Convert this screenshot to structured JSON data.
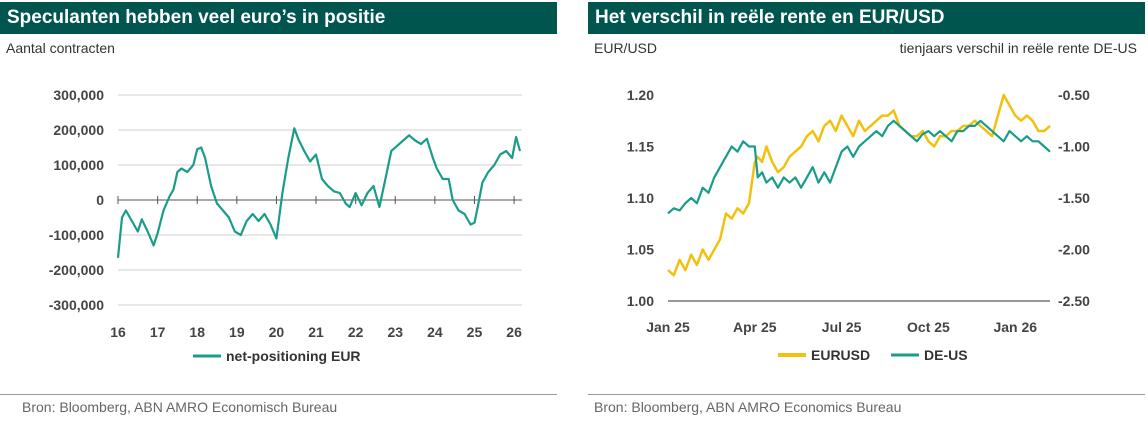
{
  "colors": {
    "header_bg": "#00554f",
    "teal": "#1a9c8a",
    "yellow": "#f2c10f",
    "grid": "#cfcfcf",
    "axis": "#777777"
  },
  "left": {
    "title": "Speculanten hebben veel euro’s in positie",
    "subtitle": "Aantal contracten",
    "source": "Bron: Bloomberg, ABN AMRO Economisch Bureau"
  },
  "right": {
    "title": "Het verschil in reële rente en EUR/USD",
    "subtitle_left": "EUR/USD",
    "subtitle_right": "tienjaars verschil in reële rente DE-US",
    "source": "Bron: Bloomberg, ABN AMRO Economics Bureau"
  },
  "chart_data": [
    {
      "type": "line",
      "title": "Speculanten hebben veel euro’s in positie",
      "ylabel": "Aantal contracten",
      "ylim": [
        -300000,
        300000
      ],
      "yticks": [
        300000,
        200000,
        100000,
        0,
        -100000,
        -200000,
        -300000
      ],
      "ytick_labels": [
        "300,000",
        "200,000",
        "100,000",
        "0",
        "-100,000",
        "-200,000",
        "-300,000"
      ],
      "xlim": [
        16,
        26.2
      ],
      "xticks": [
        16,
        17,
        18,
        19,
        20,
        21,
        22,
        23,
        24,
        25,
        26
      ],
      "xtick_labels": [
        "16",
        "17",
        "18",
        "19",
        "20",
        "21",
        "22",
        "23",
        "24",
        "25",
        "26"
      ],
      "grid": true,
      "legend": "bottom",
      "series": [
        {
          "name": "net-positioning EUR",
          "x": [
            16.0,
            16.1,
            16.2,
            16.35,
            16.5,
            16.6,
            16.75,
            16.9,
            17.0,
            17.15,
            17.3,
            17.4,
            17.5,
            17.6,
            17.75,
            17.9,
            18.0,
            18.1,
            18.2,
            18.35,
            18.5,
            18.65,
            18.8,
            18.95,
            19.1,
            19.25,
            19.4,
            19.55,
            19.7,
            19.85,
            20.0,
            20.15,
            20.3,
            20.45,
            20.55,
            20.7,
            20.85,
            21.0,
            21.15,
            21.3,
            21.45,
            21.6,
            21.75,
            21.85,
            22.0,
            22.15,
            22.3,
            22.45,
            22.6,
            22.75,
            22.9,
            23.05,
            23.2,
            23.35,
            23.5,
            23.65,
            23.8,
            23.95,
            24.05,
            24.2,
            24.35,
            24.45,
            24.6,
            24.75,
            24.9,
            25.0,
            25.1,
            25.2,
            25.35,
            25.5,
            25.65,
            25.8,
            25.95,
            26.05,
            26.15
          ],
          "values": [
            -165000,
            -50000,
            -30000,
            -60000,
            -90000,
            -55000,
            -90000,
            -130000,
            -95000,
            -30000,
            10000,
            30000,
            80000,
            90000,
            80000,
            100000,
            145000,
            150000,
            120000,
            40000,
            -10000,
            -30000,
            -50000,
            -90000,
            -100000,
            -60000,
            -40000,
            -60000,
            -40000,
            -70000,
            -110000,
            20000,
            120000,
            205000,
            175000,
            140000,
            110000,
            130000,
            60000,
            40000,
            25000,
            20000,
            -10000,
            -20000,
            20000,
            -15000,
            20000,
            40000,
            -20000,
            60000,
            140000,
            155000,
            170000,
            185000,
            170000,
            160000,
            175000,
            120000,
            90000,
            60000,
            60000,
            0,
            -30000,
            -40000,
            -70000,
            -65000,
            -10000,
            50000,
            80000,
            100000,
            130000,
            140000,
            120000,
            180000,
            140000
          ]
        }
      ]
    },
    {
      "type": "line",
      "title": "Het verschil in reële rente en EUR/USD",
      "ylabel": "EUR/USD",
      "y2label": "tienjaars verschil in reële rente DE-US",
      "ylim": [
        1.0,
        1.2
      ],
      "yticks": [
        1.2,
        1.15,
        1.1,
        1.05,
        1.0
      ],
      "ytick_labels": [
        "1.20",
        "1.15",
        "1.10",
        "1.05",
        "1.00"
      ],
      "y2lim": [
        -2.5,
        -0.5
      ],
      "y2ticks": [
        -0.5,
        -1.0,
        -1.5,
        -2.0,
        -2.5
      ],
      "y2tick_labels": [
        "-0.50",
        "-1.00",
        "-1.50",
        "-2.00",
        "-2.50"
      ],
      "xlim": [
        0,
        13.2
      ],
      "xticks": [
        0,
        3,
        6,
        9,
        12
      ],
      "xtick_labels": [
        "Jan 25",
        "Apr 25",
        "Jul 25",
        "Oct 25",
        "Jan 26"
      ],
      "grid": false,
      "legend": "bottom",
      "series": [
        {
          "name": "EURUSD",
          "axis": "left",
          "x": [
            0.0,
            0.2,
            0.4,
            0.6,
            0.8,
            1.0,
            1.2,
            1.4,
            1.6,
            1.8,
            2.0,
            2.2,
            2.4,
            2.6,
            2.8,
            3.0,
            3.1,
            3.25,
            3.4,
            3.6,
            3.8,
            4.0,
            4.2,
            4.4,
            4.6,
            4.8,
            5.0,
            5.2,
            5.4,
            5.6,
            5.8,
            6.0,
            6.2,
            6.4,
            6.6,
            6.8,
            7.0,
            7.2,
            7.4,
            7.6,
            7.8,
            8.0,
            8.2,
            8.4,
            8.6,
            8.8,
            9.0,
            9.2,
            9.4,
            9.6,
            9.8,
            10.0,
            10.2,
            10.4,
            10.6,
            10.8,
            11.0,
            11.2,
            11.4,
            11.6,
            11.8,
            12.0,
            12.2,
            12.4,
            12.6,
            12.8,
            13.0,
            13.2
          ],
          "values": [
            1.03,
            1.025,
            1.04,
            1.03,
            1.045,
            1.035,
            1.05,
            1.04,
            1.05,
            1.06,
            1.085,
            1.08,
            1.09,
            1.085,
            1.095,
            1.135,
            1.14,
            1.135,
            1.15,
            1.135,
            1.125,
            1.13,
            1.14,
            1.145,
            1.15,
            1.16,
            1.165,
            1.155,
            1.17,
            1.175,
            1.165,
            1.18,
            1.17,
            1.16,
            1.175,
            1.165,
            1.17,
            1.175,
            1.18,
            1.18,
            1.185,
            1.17,
            1.165,
            1.16,
            1.16,
            1.165,
            1.155,
            1.15,
            1.16,
            1.16,
            1.165,
            1.165,
            1.17,
            1.17,
            1.175,
            1.17,
            1.165,
            1.16,
            1.18,
            1.2,
            1.19,
            1.18,
            1.175,
            1.18,
            1.175,
            1.165,
            1.165,
            1.17
          ]
        },
        {
          "name": "DE-US",
          "axis": "right",
          "x": [
            0.0,
            0.2,
            0.4,
            0.6,
            0.8,
            1.0,
            1.2,
            1.4,
            1.6,
            1.8,
            2.0,
            2.2,
            2.4,
            2.6,
            2.8,
            3.0,
            3.1,
            3.25,
            3.4,
            3.6,
            3.8,
            4.0,
            4.2,
            4.4,
            4.6,
            4.8,
            5.0,
            5.2,
            5.4,
            5.6,
            5.8,
            6.0,
            6.2,
            6.4,
            6.6,
            6.8,
            7.0,
            7.2,
            7.4,
            7.6,
            7.8,
            8.0,
            8.2,
            8.4,
            8.6,
            8.8,
            9.0,
            9.2,
            9.4,
            9.6,
            9.8,
            10.0,
            10.2,
            10.4,
            10.6,
            10.8,
            11.0,
            11.2,
            11.4,
            11.6,
            11.8,
            12.0,
            12.2,
            12.4,
            12.6,
            12.8,
            13.0,
            13.2
          ],
          "values": [
            -1.65,
            -1.6,
            -1.62,
            -1.55,
            -1.5,
            -1.55,
            -1.4,
            -1.45,
            -1.3,
            -1.2,
            -1.1,
            -1.0,
            -1.05,
            -0.95,
            -1.0,
            -1.0,
            -1.3,
            -1.25,
            -1.35,
            -1.3,
            -1.4,
            -1.3,
            -1.35,
            -1.3,
            -1.4,
            -1.3,
            -1.2,
            -1.35,
            -1.25,
            -1.35,
            -1.2,
            -1.05,
            -1.0,
            -1.1,
            -1.0,
            -0.95,
            -0.9,
            -0.85,
            -0.9,
            -0.8,
            -0.75,
            -0.8,
            -0.85,
            -0.9,
            -0.95,
            -0.88,
            -0.85,
            -0.9,
            -0.85,
            -0.9,
            -0.95,
            -0.85,
            -0.85,
            -0.8,
            -0.8,
            -0.75,
            -0.8,
            -0.85,
            -0.9,
            -0.95,
            -0.85,
            -0.9,
            -0.95,
            -0.9,
            -0.95,
            -0.95,
            -1.0,
            -1.05
          ]
        }
      ]
    }
  ]
}
